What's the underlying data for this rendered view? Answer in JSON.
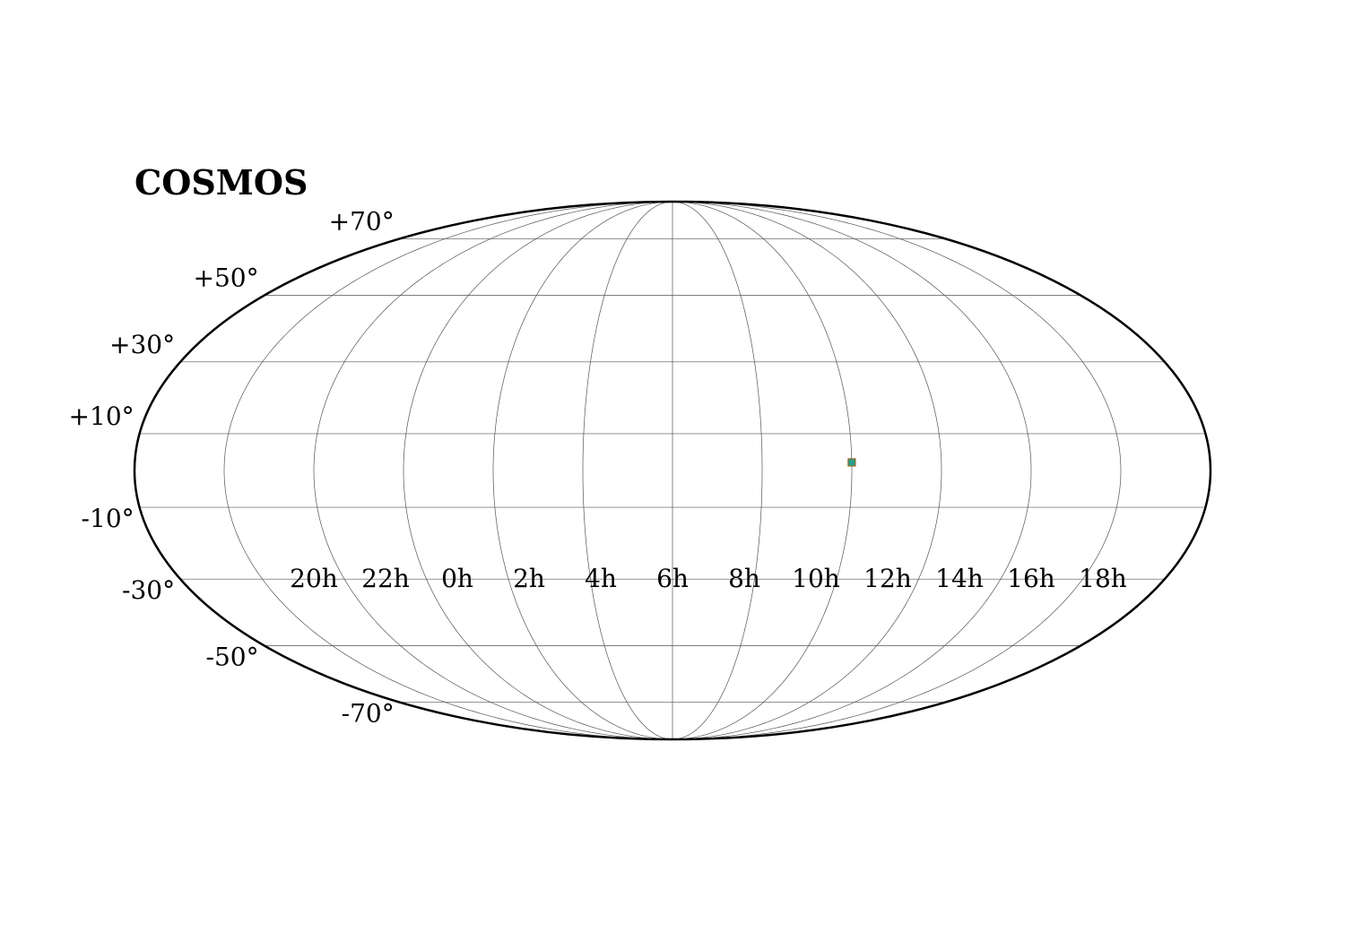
{
  "title": "COSMOS",
  "chart_data": {
    "type": "scatter",
    "projection": "mollweide",
    "title": "COSMOS",
    "ra_center_hours": 6,
    "ra_ticks": [
      "20h",
      "22h",
      "0h",
      "2h",
      "4h",
      "6h",
      "8h",
      "10h",
      "12h",
      "14h",
      "16h",
      "18h"
    ],
    "ra_tick_hours": [
      20,
      22,
      0,
      2,
      4,
      6,
      8,
      10,
      12,
      14,
      16,
      18
    ],
    "dec_ticks": [
      "+70°",
      "+50°",
      "+30°",
      "+10°",
      "-10°",
      "-30°",
      "-50°",
      "-70°"
    ],
    "dec_tick_values": [
      70,
      50,
      30,
      10,
      -10,
      -30,
      -50,
      -70
    ],
    "grid": true,
    "field": {
      "ra_hours": 10.0,
      "dec_deg": 2.2,
      "fill": "#2a9d8f",
      "edge": "#8b6d1f"
    }
  }
}
